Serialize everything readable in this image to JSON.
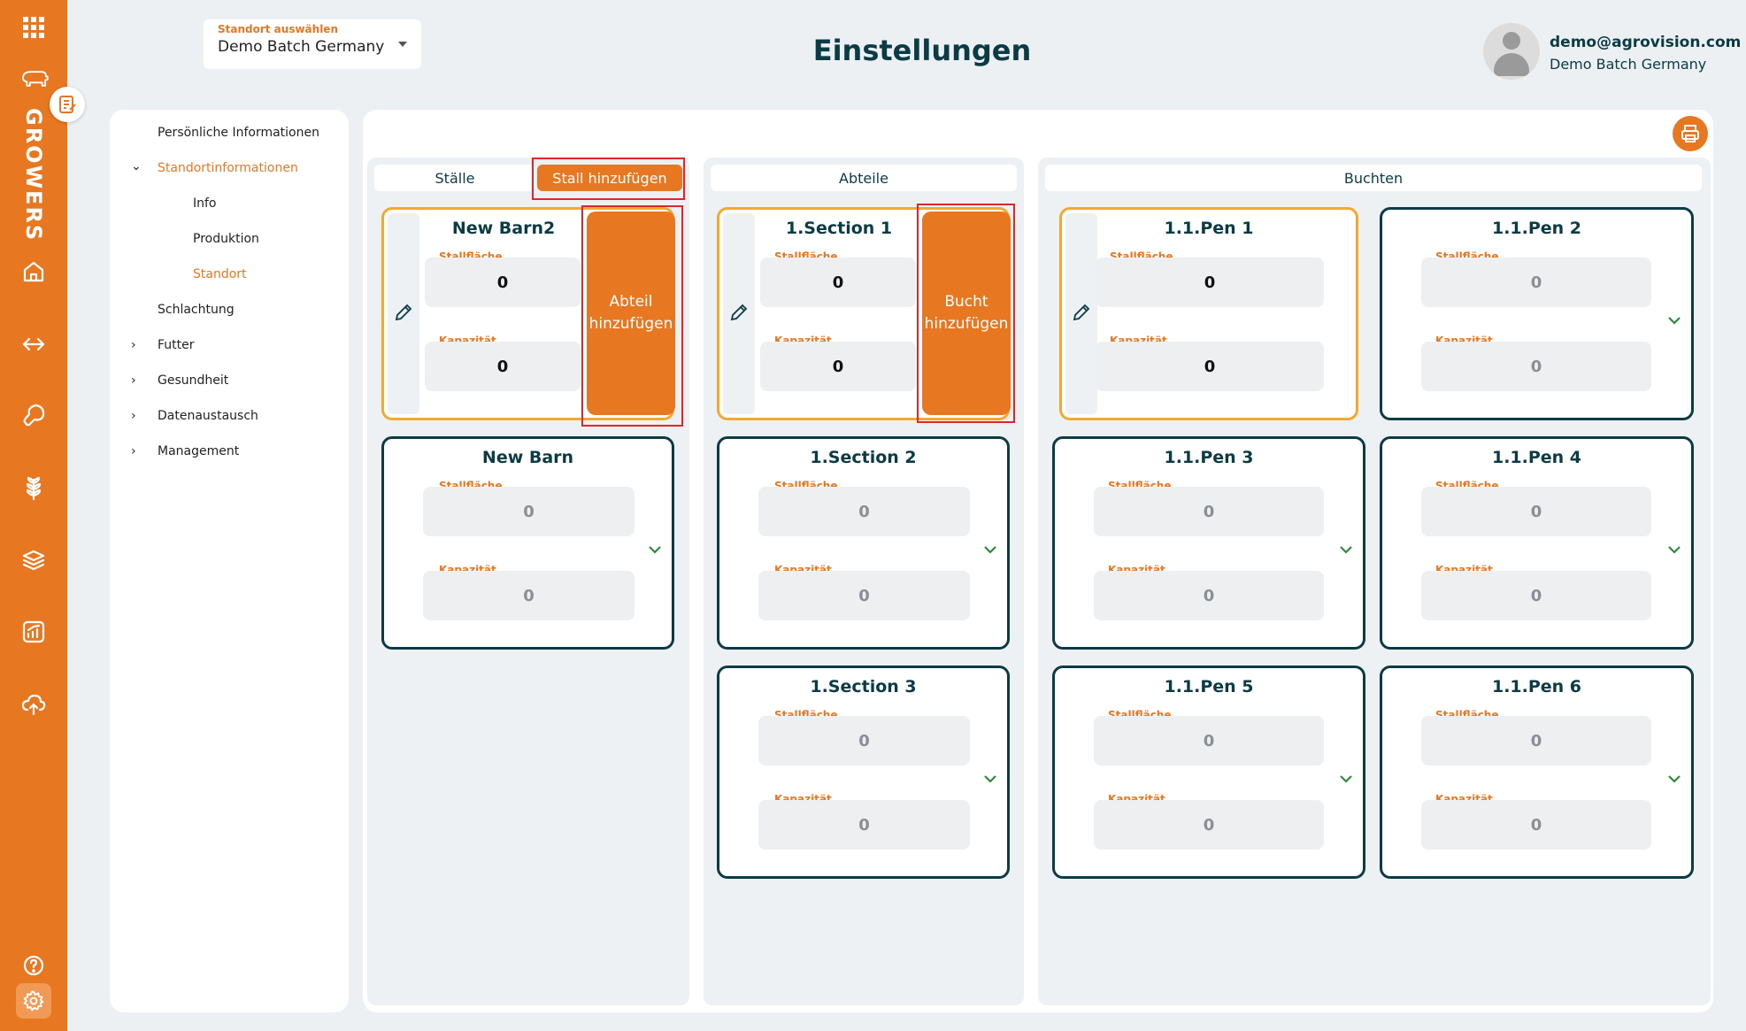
{
  "header": {
    "site_select_label": "Standort auswählen",
    "site_select_value": "Demo Batch Germany",
    "page_title": "Einstellungen",
    "user_email": "demo@agrovision.com",
    "user_site": "Demo Batch Germany"
  },
  "rail": {
    "brand": "GROWERS",
    "icons": [
      "apps-grid-icon",
      "pig-icon",
      "notes-icon",
      "home-icon",
      "transfer-icon",
      "meat-icon",
      "grain-icon",
      "layers-icon",
      "report-chart-icon",
      "cloud-upload-icon",
      "help-icon",
      "settings-icon"
    ]
  },
  "tree": {
    "items": [
      {
        "label": "Persönliche Informationen"
      },
      {
        "label": "Standortinformationen",
        "expanded": true,
        "active": true
      },
      {
        "label": "Info"
      },
      {
        "label": "Produktion"
      },
      {
        "label": "Standort",
        "active": true
      },
      {
        "label": "Schlachtung"
      },
      {
        "label": "Futter"
      },
      {
        "label": "Gesundheit"
      },
      {
        "label": "Datenaustausch"
      },
      {
        "label": "Management"
      }
    ]
  },
  "columns": {
    "barns": {
      "header": "Ställe",
      "add_label": "Stall hinzufügen",
      "cards": [
        {
          "title": "New Barn2",
          "area_label": "Stallfläche",
          "area": "0",
          "capacity_label": "Kapazität",
          "capacity": "0",
          "selected": true,
          "side_add_label": "Abteil hinzufügen"
        },
        {
          "title": "New Barn",
          "area_label": "Stallfläche",
          "area": "0",
          "capacity_label": "Kapazität",
          "capacity": "0"
        }
      ]
    },
    "sections": {
      "header": "Abteile",
      "cards": [
        {
          "title": "1.Section 1",
          "area_label": "Stallfläche",
          "area": "0",
          "capacity_label": "Kapazität",
          "capacity": "0",
          "selected": true,
          "side_add_label": "Bucht hinzufügen"
        },
        {
          "title": "1.Section 2",
          "area_label": "Stallfläche",
          "area": "0",
          "capacity_label": "Kapazität",
          "capacity": "0"
        },
        {
          "title": "1.Section 3",
          "area_label": "Stallfläche",
          "area": "0",
          "capacity_label": "Kapazität",
          "capacity": "0"
        }
      ]
    },
    "pens": {
      "header": "Buchten",
      "cards": [
        {
          "title": "1.1.Pen 1",
          "area_label": "Stallfläche",
          "area": "0",
          "capacity_label": "Kapazität",
          "capacity": "0",
          "selected": true
        },
        {
          "title": "1.1.Pen 2",
          "area_label": "Stallfläche",
          "area": "0",
          "capacity_label": "Kapazität",
          "capacity": "0"
        },
        {
          "title": "1.1.Pen 3",
          "area_label": "Stallfläche",
          "area": "0",
          "capacity_label": "Kapazität",
          "capacity": "0"
        },
        {
          "title": "1.1.Pen 4",
          "area_label": "Stallfläche",
          "area": "0",
          "capacity_label": "Kapazität",
          "capacity": "0"
        },
        {
          "title": "1.1.Pen 5",
          "area_label": "Stallfläche",
          "area": "0",
          "capacity_label": "Kapazität",
          "capacity": "0"
        },
        {
          "title": "1.1.Pen 6",
          "area_label": "Stallfläche",
          "area": "0",
          "capacity_label": "Kapazität",
          "capacity": "0"
        }
      ]
    }
  },
  "colors": {
    "accent": "#e87722",
    "dark": "#0b3b45",
    "selected_border": "#f3a830",
    "highlight": "#e0262b",
    "expand": "#2e8b3a"
  }
}
